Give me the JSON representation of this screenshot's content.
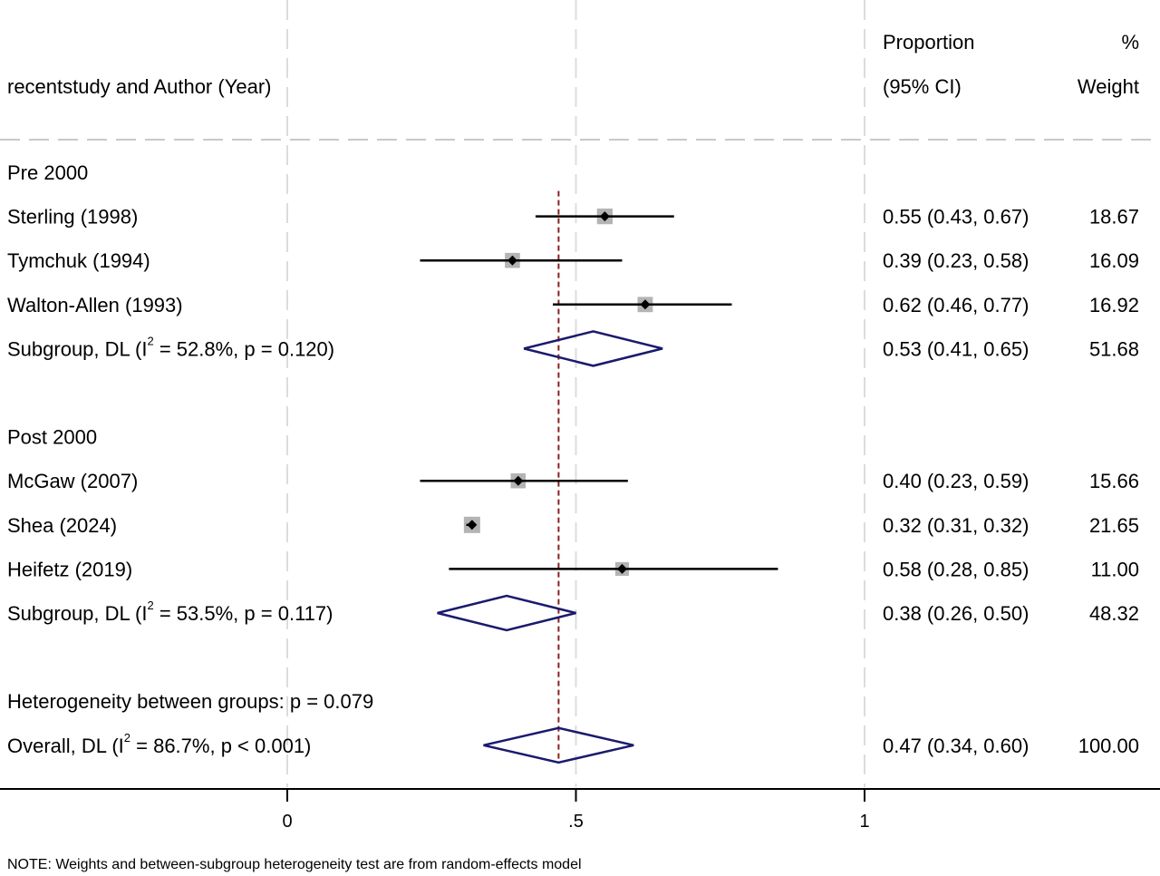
{
  "chart_data": {
    "type": "forest",
    "header": {
      "study_col": "recentstudy and Author (Year)",
      "ci_col_line1": "Proportion",
      "ci_col_line2": "(95% CI)",
      "weight_col_line1": "%",
      "weight_col_line2": "Weight"
    },
    "x_ticks": [
      {
        "value": 0,
        "label": "0"
      },
      {
        "value": 0.5,
        "label": ".5"
      },
      {
        "value": 1,
        "label": "1"
      }
    ],
    "xlim": [
      -0.5,
      1.5
    ],
    "overall_line": 0.47,
    "rows": [
      {
        "kind": "group",
        "label": "Pre 2000"
      },
      {
        "kind": "study",
        "label": "Sterling  (1998)",
        "est": 0.55,
        "lo": 0.43,
        "hi": 0.67,
        "ci_text": "0.55 (0.43, 0.67)",
        "weight_text": "18.67",
        "weight": 18.67
      },
      {
        "kind": "study",
        "label": "Tymchuk (1994)",
        "est": 0.39,
        "lo": 0.23,
        "hi": 0.58,
        "ci_text": "0.39 (0.23, 0.58)",
        "weight_text": "16.09",
        "weight": 16.09
      },
      {
        "kind": "study",
        "label": "Walton-Allen (1993)",
        "est": 0.62,
        "lo": 0.46,
        "hi": 0.77,
        "ci_text": "0.62 (0.46, 0.77)",
        "weight_text": "16.92",
        "weight": 16.92
      },
      {
        "kind": "subgroup",
        "label_pre": "Subgroup, DL (I",
        "label_sup": "2",
        "label_post": " = 52.8%, p = 0.120)",
        "est": 0.53,
        "lo": 0.41,
        "hi": 0.65,
        "ci_text": "0.53 (0.41, 0.65)",
        "weight_text": "51.68"
      },
      {
        "kind": "blank"
      },
      {
        "kind": "group",
        "label": "Post 2000"
      },
      {
        "kind": "study",
        "label": "McGaw (2007)",
        "est": 0.4,
        "lo": 0.23,
        "hi": 0.59,
        "ci_text": "0.40 (0.23, 0.59)",
        "weight_text": "15.66",
        "weight": 15.66
      },
      {
        "kind": "study",
        "label": "Shea  (2024)",
        "est": 0.32,
        "lo": 0.31,
        "hi": 0.32,
        "ci_text": "0.32 (0.31, 0.32)",
        "weight_text": "21.65",
        "weight": 21.65
      },
      {
        "kind": "study",
        "label": "Heifetz (2019)",
        "est": 0.58,
        "lo": 0.28,
        "hi": 0.85,
        "ci_text": "0.58 (0.28, 0.85)",
        "weight_text": "11.00",
        "weight": 11.0
      },
      {
        "kind": "subgroup",
        "label_pre": "Subgroup, DL (I",
        "label_sup": "2",
        "label_post": " = 53.5%, p = 0.117)",
        "est": 0.38,
        "lo": 0.26,
        "hi": 0.5,
        "ci_text": "0.38 (0.26, 0.50)",
        "weight_text": "48.32"
      },
      {
        "kind": "blank"
      },
      {
        "kind": "text",
        "label": "Heterogeneity between groups: p = 0.079"
      },
      {
        "kind": "overall",
        "label_pre": "Overall, DL (I",
        "label_sup": "2",
        "label_post": " = 86.7%, p < 0.001)",
        "est": 0.47,
        "lo": 0.34,
        "hi": 0.6,
        "ci_text": "0.47 (0.34, 0.60)",
        "weight_text": "100.00"
      }
    ],
    "note": "NOTE: Weights and between-subgroup heterogeneity test are from random-effects model",
    "colors": {
      "diamond": "#1a1a6e",
      "marker_box": "#b4b4b4",
      "ref_line": "#8b2020",
      "grid_dash": "#dcdcdc",
      "text": "#000000"
    }
  }
}
